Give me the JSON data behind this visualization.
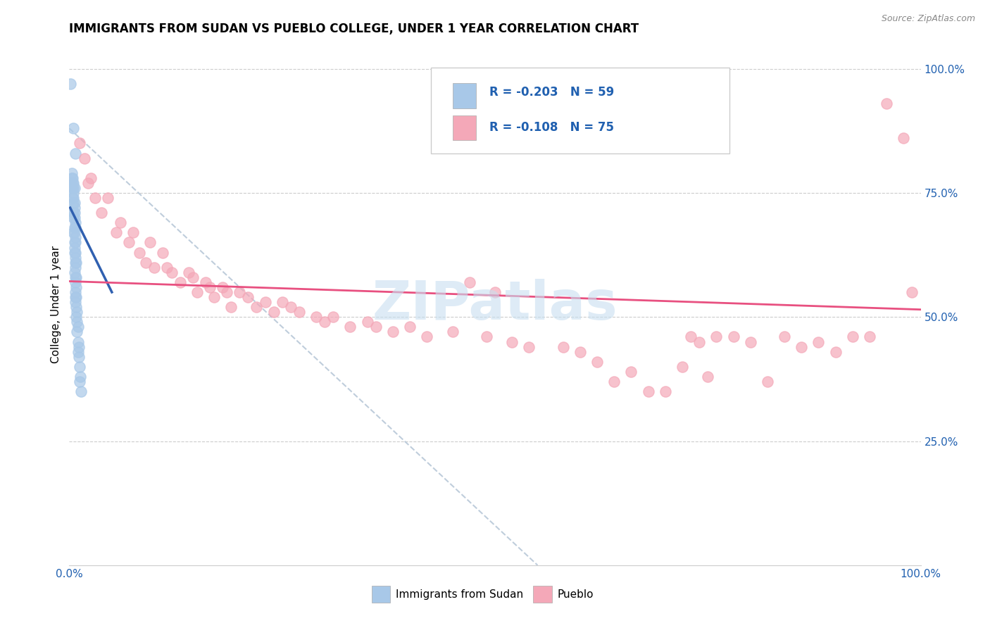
{
  "title": "IMMIGRANTS FROM SUDAN VS PUEBLO COLLEGE, UNDER 1 YEAR CORRELATION CHART",
  "source": "Source: ZipAtlas.com",
  "ylabel": "College, Under 1 year",
  "ylabel_right_ticks": [
    "100.0%",
    "75.0%",
    "50.0%",
    "25.0%"
  ],
  "ylabel_right_vals": [
    1.0,
    0.75,
    0.5,
    0.25
  ],
  "legend_label1": "Immigrants from Sudan",
  "legend_label2": "Pueblo",
  "R1": "-0.203",
  "N1": "59",
  "R2": "-0.108",
  "N2": "75",
  "color_blue": "#a8c8e8",
  "color_pink": "#f4a8b8",
  "color_blue_line": "#3060b0",
  "color_pink_line": "#e85080",
  "color_dashed_line": "#b8c8d8",
  "watermark_color": "#c8dff0",
  "sudan_points": [
    [
      0.001,
      0.97
    ],
    [
      0.005,
      0.88
    ],
    [
      0.007,
      0.83
    ],
    [
      0.003,
      0.79
    ],
    [
      0.004,
      0.78
    ],
    [
      0.003,
      0.78
    ],
    [
      0.005,
      0.77
    ],
    [
      0.004,
      0.77
    ],
    [
      0.004,
      0.76
    ],
    [
      0.005,
      0.76
    ],
    [
      0.006,
      0.76
    ],
    [
      0.005,
      0.75
    ],
    [
      0.004,
      0.74
    ],
    [
      0.005,
      0.74
    ],
    [
      0.006,
      0.73
    ],
    [
      0.005,
      0.73
    ],
    [
      0.006,
      0.72
    ],
    [
      0.005,
      0.71
    ],
    [
      0.006,
      0.71
    ],
    [
      0.005,
      0.7
    ],
    [
      0.006,
      0.7
    ],
    [
      0.007,
      0.69
    ],
    [
      0.006,
      0.68
    ],
    [
      0.007,
      0.68
    ],
    [
      0.005,
      0.67
    ],
    [
      0.006,
      0.67
    ],
    [
      0.007,
      0.66
    ],
    [
      0.006,
      0.65
    ],
    [
      0.007,
      0.65
    ],
    [
      0.006,
      0.64
    ],
    [
      0.007,
      0.63
    ],
    [
      0.006,
      0.63
    ],
    [
      0.007,
      0.62
    ],
    [
      0.007,
      0.61
    ],
    [
      0.008,
      0.61
    ],
    [
      0.007,
      0.6
    ],
    [
      0.006,
      0.59
    ],
    [
      0.007,
      0.58
    ],
    [
      0.008,
      0.58
    ],
    [
      0.007,
      0.57
    ],
    [
      0.008,
      0.56
    ],
    [
      0.007,
      0.55
    ],
    [
      0.007,
      0.54
    ],
    [
      0.008,
      0.54
    ],
    [
      0.007,
      0.53
    ],
    [
      0.008,
      0.52
    ],
    [
      0.009,
      0.51
    ],
    [
      0.008,
      0.5
    ],
    [
      0.009,
      0.49
    ],
    [
      0.01,
      0.48
    ],
    [
      0.009,
      0.47
    ],
    [
      0.01,
      0.45
    ],
    [
      0.011,
      0.44
    ],
    [
      0.01,
      0.43
    ],
    [
      0.011,
      0.42
    ],
    [
      0.012,
      0.4
    ],
    [
      0.013,
      0.38
    ],
    [
      0.012,
      0.37
    ],
    [
      0.014,
      0.35
    ]
  ],
  "pueblo_points": [
    [
      0.012,
      0.85
    ],
    [
      0.018,
      0.82
    ],
    [
      0.022,
      0.77
    ],
    [
      0.025,
      0.78
    ],
    [
      0.03,
      0.74
    ],
    [
      0.038,
      0.71
    ],
    [
      0.045,
      0.74
    ],
    [
      0.055,
      0.67
    ],
    [
      0.06,
      0.69
    ],
    [
      0.07,
      0.65
    ],
    [
      0.075,
      0.67
    ],
    [
      0.082,
      0.63
    ],
    [
      0.09,
      0.61
    ],
    [
      0.095,
      0.65
    ],
    [
      0.1,
      0.6
    ],
    [
      0.11,
      0.63
    ],
    [
      0.115,
      0.6
    ],
    [
      0.12,
      0.59
    ],
    [
      0.13,
      0.57
    ],
    [
      0.14,
      0.59
    ],
    [
      0.145,
      0.58
    ],
    [
      0.15,
      0.55
    ],
    [
      0.16,
      0.57
    ],
    [
      0.165,
      0.56
    ],
    [
      0.17,
      0.54
    ],
    [
      0.18,
      0.56
    ],
    [
      0.185,
      0.55
    ],
    [
      0.19,
      0.52
    ],
    [
      0.2,
      0.55
    ],
    [
      0.21,
      0.54
    ],
    [
      0.22,
      0.52
    ],
    [
      0.23,
      0.53
    ],
    [
      0.24,
      0.51
    ],
    [
      0.25,
      0.53
    ],
    [
      0.26,
      0.52
    ],
    [
      0.27,
      0.51
    ],
    [
      0.29,
      0.5
    ],
    [
      0.3,
      0.49
    ],
    [
      0.31,
      0.5
    ],
    [
      0.33,
      0.48
    ],
    [
      0.35,
      0.49
    ],
    [
      0.36,
      0.48
    ],
    [
      0.38,
      0.47
    ],
    [
      0.4,
      0.48
    ],
    [
      0.42,
      0.46
    ],
    [
      0.45,
      0.47
    ],
    [
      0.47,
      0.57
    ],
    [
      0.49,
      0.46
    ],
    [
      0.5,
      0.55
    ],
    [
      0.52,
      0.45
    ],
    [
      0.54,
      0.44
    ],
    [
      0.58,
      0.44
    ],
    [
      0.6,
      0.43
    ],
    [
      0.62,
      0.41
    ],
    [
      0.64,
      0.37
    ],
    [
      0.66,
      0.39
    ],
    [
      0.68,
      0.35
    ],
    [
      0.7,
      0.35
    ],
    [
      0.72,
      0.4
    ],
    [
      0.73,
      0.46
    ],
    [
      0.74,
      0.45
    ],
    [
      0.75,
      0.38
    ],
    [
      0.76,
      0.46
    ],
    [
      0.78,
      0.46
    ],
    [
      0.8,
      0.45
    ],
    [
      0.82,
      0.37
    ],
    [
      0.84,
      0.46
    ],
    [
      0.86,
      0.44
    ],
    [
      0.88,
      0.45
    ],
    [
      0.9,
      0.43
    ],
    [
      0.92,
      0.46
    ],
    [
      0.94,
      0.46
    ],
    [
      0.96,
      0.93
    ],
    [
      0.98,
      0.86
    ],
    [
      0.99,
      0.55
    ]
  ],
  "blue_line": [
    [
      0.001,
      0.72
    ],
    [
      0.05,
      0.55
    ]
  ],
  "pink_line": [
    [
      0.0,
      0.572
    ],
    [
      1.0,
      0.515
    ]
  ],
  "dash_line": [
    [
      0.0,
      0.88
    ],
    [
      0.55,
      0.0
    ]
  ],
  "xlim": [
    0.0,
    1.0
  ],
  "ylim": [
    0.0,
    1.05
  ]
}
